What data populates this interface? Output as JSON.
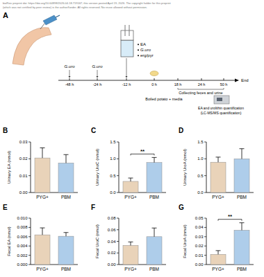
{
  "chart_data": [
    {
      "type": "bar",
      "panel_label": "B",
      "y_label": "Urinary EA (nmol)",
      "categories": [
        "PYG+",
        "PBM"
      ],
      "values": [
        0.0205,
        0.0175
      ],
      "errors": [
        0.006,
        0.005
      ],
      "colors": [
        "#e9d3b9",
        "#aecdea"
      ],
      "ylim": [
        0,
        0.03
      ],
      "yticks": [
        {
          "value": 0,
          "label": "0.00"
        },
        0.01,
        0.02,
        0.03
      ]
    },
    {
      "type": "bar",
      "panel_label": "C",
      "y_label": "Urinary UroC (nmol)",
      "categories": [
        "PYG+",
        "PBM"
      ],
      "values": [
        0.33,
        0.89
      ],
      "errors": [
        0.1,
        0.15
      ],
      "colors": [
        "#e9d3b9",
        "#aecdea"
      ],
      "ylim": [
        0,
        1.5
      ],
      "yticks": [
        {
          "value": 0,
          "label": "0.0"
        },
        0.5,
        {
          "value": 1,
          "label": "1.0"
        },
        1.5
      ],
      "annotations": [
        "**"
      ]
    },
    {
      "type": "bar",
      "panel_label": "D",
      "y_label": "Urinary UroA (nmol)",
      "categories": [
        "PYG+",
        "PBM"
      ],
      "values": [
        0.9,
        1.0
      ],
      "errors": [
        0.15,
        0.3
      ],
      "colors": [
        "#e9d3b9",
        "#aecdea"
      ],
      "ylim": [
        0,
        1.5
      ],
      "yticks": [
        {
          "value": 0,
          "label": "0.0"
        },
        0.5,
        {
          "value": 1,
          "label": "1.0"
        },
        1.5
      ]
    },
    {
      "type": "bar",
      "panel_label": "E",
      "y_label": "Fecal EA (nmol)",
      "categories": [
        "PYG+",
        "PBM"
      ],
      "values": [
        0.0064,
        0.0061
      ],
      "errors": [
        0.0015,
        0.0008
      ],
      "colors": [
        "#e9d3b9",
        "#aecdea"
      ],
      "ylim": [
        0,
        0.01
      ],
      "yticks": [
        {
          "value": 0,
          "label": "0.000"
        },
        0.002,
        0.004,
        0.006,
        0.008,
        {
          "value": 0.01,
          "label": "0.010"
        }
      ]
    },
    {
      "type": "bar",
      "panel_label": "F",
      "y_label": "Fecal UroC (nmol)",
      "categories": [
        "PYG+",
        "PBM"
      ],
      "values": [
        0.033,
        0.048
      ],
      "errors": [
        0.006,
        0.015
      ],
      "colors": [
        "#e9d3b9",
        "#aecdea"
      ],
      "ylim": [
        0,
        0.08
      ],
      "yticks": [
        {
          "value": 0,
          "label": "0.00"
        },
        0.02,
        0.04,
        0.06,
        0.08
      ]
    },
    {
      "type": "bar",
      "panel_label": "G",
      "y_label": "Fecal UroA (nmol)",
      "categories": [
        "PYG+",
        "PBM"
      ],
      "values": [
        0.011,
        0.037
      ],
      "errors": [
        0.004,
        0.008
      ],
      "colors": [
        "#e9d3b9",
        "#aecdea"
      ],
      "ylim": [
        0,
        0.05
      ],
      "yticks": [
        {
          "value": 0,
          "label": "0.00"
        },
        0.01,
        0.02,
        0.03,
        0.04,
        0.05
      ],
      "annotations": [
        "**"
      ]
    }
  ],
  "diagram": {
    "panel_label": "A",
    "watermark": [
      "bioRxiv preprint doi: https://doi.org/10.64898/2026.04.18.719167; this version posted April 19, 2026. The copyright holder for this preprint",
      "(which was not certified by peer review) is the author/funder. All rights reserved. No reuse allowed without permission."
    ],
    "timeline": [
      "-48 h",
      "-24 h",
      "-12 h",
      "0 h",
      "18 h",
      "24 h",
      "50 h"
    ],
    "end_label": "End",
    "dose_labels": [
      "G.uro",
      "G.uro"
    ],
    "beaker_items": [
      "EA",
      "G.uro",
      "erg/pyr"
    ],
    "collection_label": "Collecting feces and urine",
    "diet_label": "Boiled potato + media",
    "analysis_label": [
      "EA and urolithin quantification",
      "(LC-MS/MS quantification)"
    ]
  }
}
